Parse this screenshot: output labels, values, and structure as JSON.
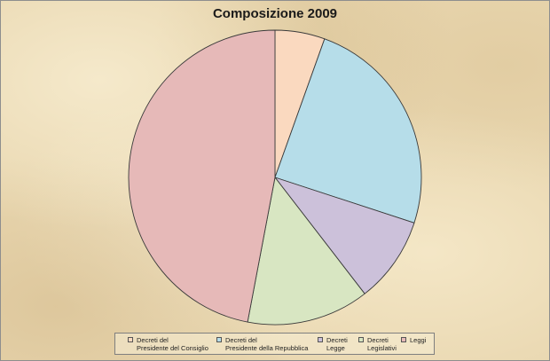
{
  "chart_data": {
    "type": "pie",
    "title": "Composizione 2009",
    "categories": [
      "Decreti del Presidente del Consiglio",
      "Decreti del Presidente della Repubblica",
      "Decreti Legge",
      "Decreti Legislativi",
      "Leggi"
    ],
    "values": [
      5.5,
      24.5,
      9.5,
      13.5,
      47
    ],
    "legend_position": "bottom",
    "legend_labels": [
      "Decreti del\nPresidente del Consiglio",
      "Decreti del\nPresidente della Repubblica",
      "Decreti\nLegge",
      "Decreti\nLegislativi",
      "Leggi"
    ],
    "colors": [
      "#fad9bf",
      "#b6dde9",
      "#ccc1da",
      "#d8e6c2",
      "#e6b9b8"
    ]
  }
}
